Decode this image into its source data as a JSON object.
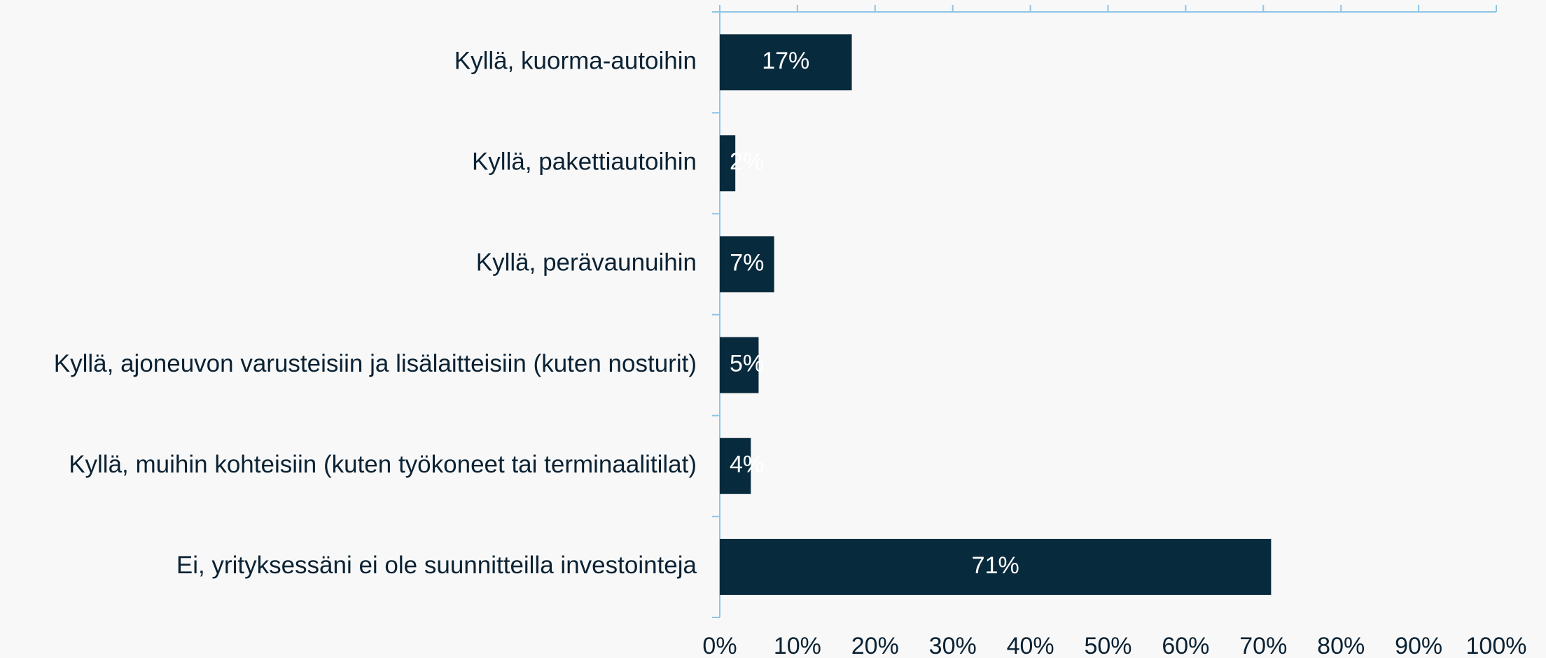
{
  "chart_data": {
    "type": "hbar",
    "categories": [
      "Kyllä, kuorma-autoihin",
      "Kyllä, pakettiautoihin",
      "Kyllä, perävaunuihin",
      "Kyllä, ajoneuvon varusteisiin ja lisälaitteisiin (kuten nosturit)",
      "Kyllä, muihin kohteisiin (kuten työkoneet tai terminaalitilat)",
      "Ei, yrityksessäni ei ole suunnitteilla investointeja"
    ],
    "values": [
      17,
      2,
      7,
      5,
      4,
      71
    ],
    "value_labels": [
      "17%",
      "2%",
      "7%",
      "5%",
      "4%",
      "71%"
    ],
    "color": "#082a3d",
    "xlim": [
      0,
      100
    ],
    "xticks": [
      {
        "value": 0,
        "label": "0%"
      },
      {
        "value": 10,
        "label": "10%"
      },
      {
        "value": 20,
        "label": "20%"
      },
      {
        "value": 30,
        "label": "30%"
      },
      {
        "value": 40,
        "label": "40%"
      },
      {
        "value": 50,
        "label": "50%"
      },
      {
        "value": 60,
        "label": "60%"
      },
      {
        "value": 70,
        "label": "70%"
      },
      {
        "value": 80,
        "label": "80%"
      },
      {
        "value": 90,
        "label": "90%"
      },
      {
        "value": 100,
        "label": "100%"
      }
    ]
  }
}
